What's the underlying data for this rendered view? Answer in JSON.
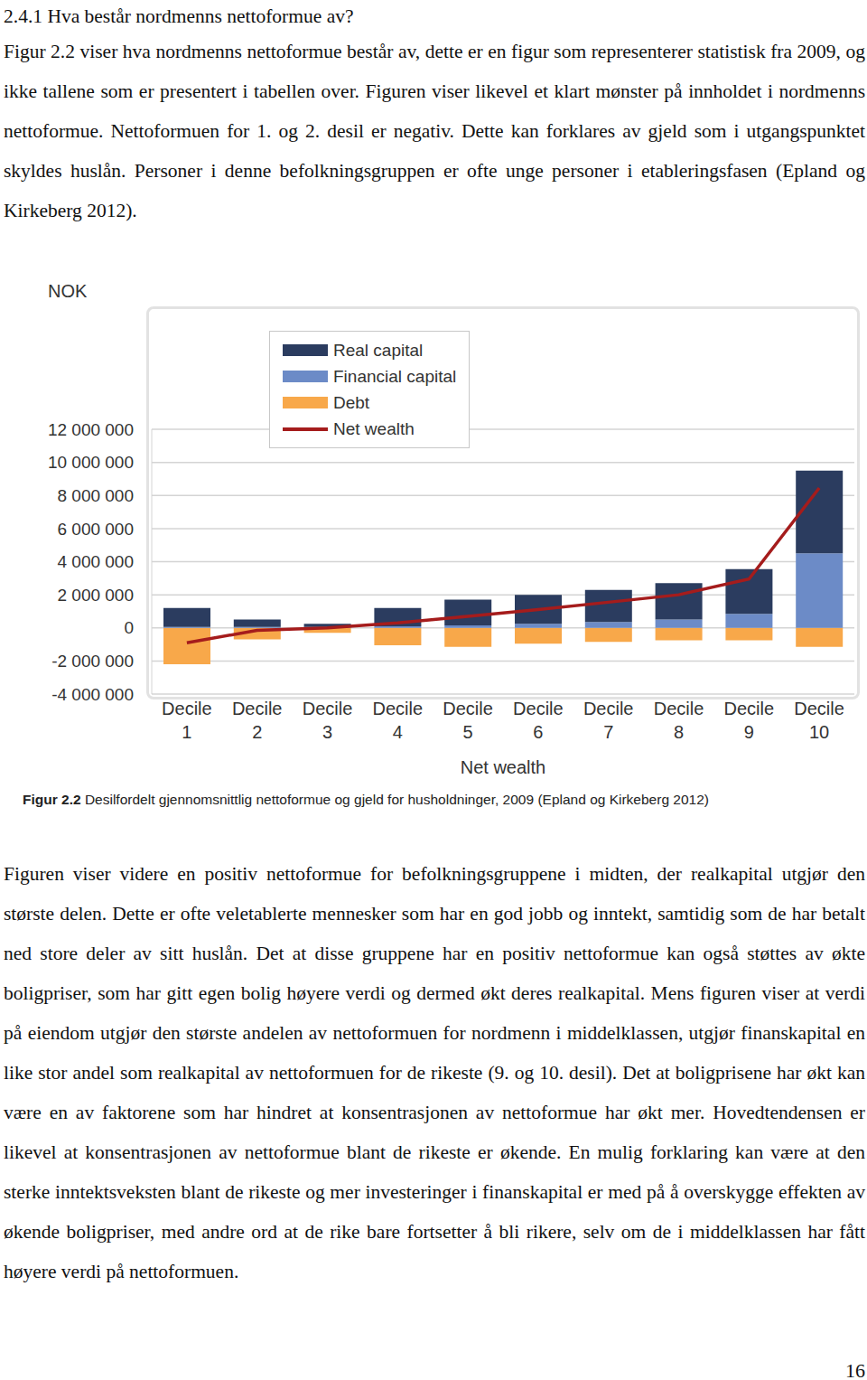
{
  "heading": "2.4.1 Hva består nordmenns nettoformue av?",
  "paragraphs_before": [
    "Figur 2.2 viser hva nordmenns nettoformue består av, dette er en figur som representerer statistisk fra 2009, og ikke tallene som er presentert i tabellen over. Figuren viser likevel et klart mønster på innholdet i nordmenns nettoformue. Nettoformuen for 1. og 2. desil er negativ. Dette kan forklares av gjeld som i utgangspunktet skyldes huslån. Personer i denne befolkningsgruppen er ofte unge personer i etableringsfasen (Epland og Kirkeberg 2012)."
  ],
  "chart_data": {
    "type": "bar",
    "stacked": true,
    "ylabel": "NOK",
    "xlabel": "Net wealth",
    "categories": [
      "Decile 1",
      "Decile 2",
      "Decile 3",
      "Decile 4",
      "Decile 5",
      "Decile 6",
      "Decile 7",
      "Decile 8",
      "Decile 9",
      "Decile 10"
    ],
    "series": [
      {
        "name": "Real capital",
        "type": "bar",
        "color": "#2b3c5f",
        "values": [
          1150000,
          450000,
          200000,
          1100000,
          1550000,
          1750000,
          1950000,
          2200000,
          2700000,
          5000000
        ]
      },
      {
        "name": "Financial capital",
        "type": "bar",
        "color": "#6c8bc7",
        "values": [
          50000,
          50000,
          50000,
          100000,
          150000,
          250000,
          350000,
          500000,
          850000,
          4500000
        ]
      },
      {
        "name": "Debt",
        "type": "bar",
        "color": "#f8a84a",
        "values": [
          -2200000,
          -700000,
          -300000,
          -1050000,
          -1150000,
          -950000,
          -850000,
          -750000,
          -750000,
          -1150000
        ]
      },
      {
        "name": "Net wealth",
        "type": "line",
        "color": "#a51c1c",
        "line_style": "solid",
        "marker": "none",
        "values": [
          -900000,
          -150000,
          0,
          300000,
          700000,
          1100000,
          1550000,
          2000000,
          2950000,
          8450000
        ]
      }
    ],
    "ylim": [
      -4000000,
      12000000
    ],
    "yticks": [
      {
        "value": -4000000,
        "label": "-4 000 000"
      },
      {
        "value": -2000000,
        "label": "-2 000 000"
      },
      0,
      {
        "value": 2000000,
        "label": "2 000 000"
      },
      {
        "value": 4000000,
        "label": "4 000 000"
      },
      {
        "value": 6000000,
        "label": "6 000 000"
      },
      {
        "value": 8000000,
        "label": "8 000 000"
      },
      {
        "value": 10000000,
        "label": "10 000 000"
      },
      {
        "value": 12000000,
        "label": "12 000 000"
      }
    ],
    "grid": true,
    "legend": "top-left",
    "data_labels": false
  },
  "caption": {
    "label": "Figur 2.2",
    "text": "Desilfordelt gjennomsnittlig nettoformue og gjeld for husholdninger, 2009 (Epland og Kirkeberg 2012)"
  },
  "paragraphs_after": [
    "Figuren viser videre en positiv nettoformue for befolkningsgruppene i midten, der realkapital utgjør den største delen. Dette er ofte veletablerte mennesker som har en god jobb og inntekt, samtidig som de har betalt ned store deler av sitt huslån. Det at disse gruppene har en positiv nettoformue kan også støttes av økte boligpriser, som har gitt egen bolig høyere verdi og dermed økt deres realkapital. Mens figuren viser at verdi på eiendom utgjør den største andelen av nettoformuen for nordmenn i middelklassen, utgjør finanskapital en like stor andel som realkapital av nettoformuen for de rikeste (9. og 10. desil). Det at boligprisene har økt kan være en av faktorene som har hindret at konsentrasjonen av nettoformue har økt mer. Hovedtendensen er likevel at konsentrasjonen av nettoformue blant de rikeste er økende. En mulig forklaring kan være at den sterke inntektsveksten blant de rikeste og mer investeringer i finanskapital er med på å overskygge effekten av økende boligpriser, med andre ord at de rike bare fortsetter å bli rikere, selv om de i middelklassen har fått høyere verdi på nettoformuen."
  ],
  "page_number": "16"
}
